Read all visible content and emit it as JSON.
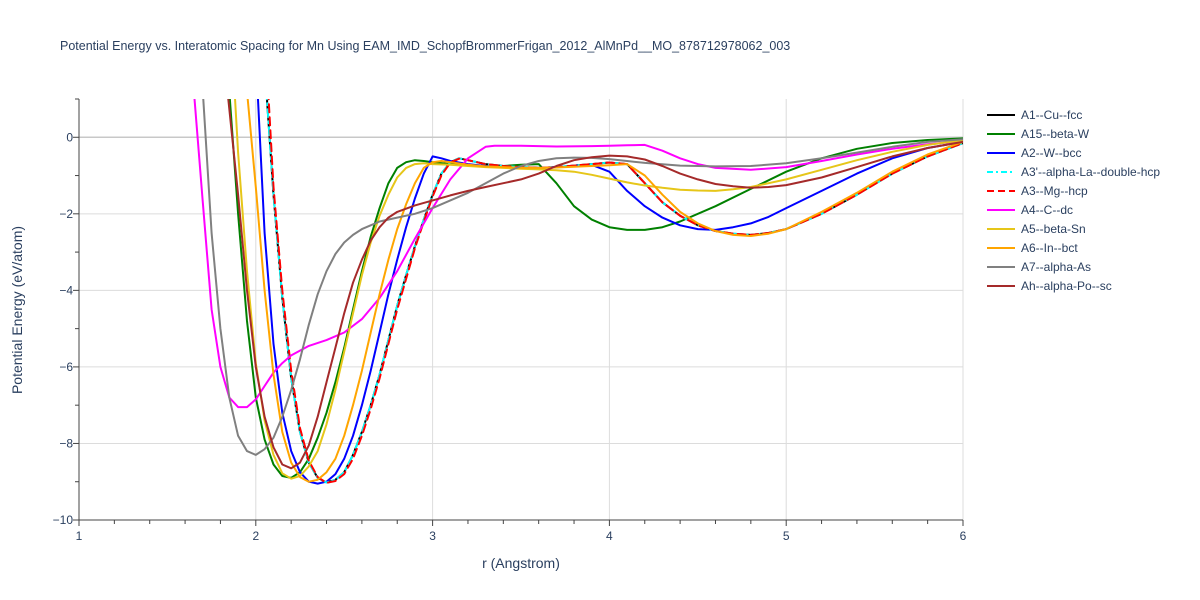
{
  "chart_data": {
    "type": "line",
    "title": "Potential Energy vs. Interatomic Spacing for Mn Using EAM_IMD_SchopfBrommerFrigan_2012_AlMnPd__MO_878712978062_003",
    "xlabel": "r (Angstrom)",
    "ylabel": "Potential Energy (eV/atom)",
    "xlim": [
      1,
      6
    ],
    "ylim": [
      -10,
      1
    ],
    "xticks": [
      1,
      2,
      3,
      4,
      5,
      6
    ],
    "yticks": [
      -10,
      -8,
      -6,
      -4,
      -2,
      0
    ],
    "grid": true,
    "legend_position": "right",
    "series": [
      {
        "name": "A1--Cu--fcc",
        "color": "#000000",
        "dash": "solid",
        "x": [
          2.06,
          2.1,
          2.15,
          2.2,
          2.25,
          2.3,
          2.35,
          2.4,
          2.45,
          2.5,
          2.55,
          2.6,
          2.65,
          2.7,
          2.75,
          2.8,
          2.85,
          2.9,
          2.95,
          3.0,
          3.05,
          3.1,
          3.15,
          3.2,
          3.3,
          3.4,
          3.5,
          3.6,
          3.7,
          3.8,
          3.9,
          4.0,
          4.1,
          4.2,
          4.3,
          4.4,
          4.5,
          4.6,
          4.7,
          4.8,
          4.9,
          5.0,
          5.2,
          5.4,
          5.6,
          5.8,
          6.0
        ],
        "y": [
          1.2,
          -1.5,
          -4.2,
          -6.3,
          -7.7,
          -8.5,
          -8.9,
          -9.02,
          -8.95,
          -8.75,
          -8.3,
          -7.7,
          -7.0,
          -6.2,
          -5.3,
          -4.4,
          -3.6,
          -2.85,
          -2.15,
          -1.5,
          -0.95,
          -0.65,
          -0.55,
          -0.6,
          -0.7,
          -0.75,
          -0.78,
          -0.8,
          -0.78,
          -0.74,
          -0.7,
          -0.66,
          -0.7,
          -1.2,
          -1.7,
          -2.05,
          -2.3,
          -2.45,
          -2.52,
          -2.55,
          -2.5,
          -2.4,
          -2.0,
          -1.5,
          -0.95,
          -0.5,
          -0.15
        ]
      },
      {
        "name": "A15--beta-W",
        "color": "#008000",
        "dash": "solid",
        "x": [
          1.85,
          1.9,
          1.95,
          2.0,
          2.05,
          2.1,
          2.15,
          2.2,
          2.25,
          2.3,
          2.35,
          2.4,
          2.45,
          2.5,
          2.55,
          2.6,
          2.65,
          2.7,
          2.75,
          2.8,
          2.85,
          2.9,
          2.95,
          3.0,
          3.1,
          3.2,
          3.3,
          3.4,
          3.5,
          3.6,
          3.7,
          3.8,
          3.9,
          4.0,
          4.1,
          4.2,
          4.3,
          4.4,
          4.6,
          4.8,
          5.0,
          5.2,
          5.4,
          5.6,
          5.8,
          6.0
        ],
        "y": [
          1.2,
          -2.0,
          -4.8,
          -6.8,
          -7.9,
          -8.55,
          -8.85,
          -8.9,
          -8.75,
          -8.4,
          -7.85,
          -7.2,
          -6.4,
          -5.5,
          -4.5,
          -3.5,
          -2.6,
          -1.85,
          -1.2,
          -0.8,
          -0.65,
          -0.6,
          -0.62,
          -0.65,
          -0.7,
          -0.73,
          -0.75,
          -0.75,
          -0.72,
          -0.7,
          -1.2,
          -1.8,
          -2.15,
          -2.35,
          -2.42,
          -2.42,
          -2.35,
          -2.2,
          -1.8,
          -1.35,
          -0.9,
          -0.55,
          -0.3,
          -0.15,
          -0.07,
          -0.03
        ]
      },
      {
        "name": "A2--W--bcc",
        "color": "#0000ff",
        "dash": "solid",
        "x": [
          2.01,
          2.05,
          2.1,
          2.15,
          2.2,
          2.25,
          2.3,
          2.35,
          2.4,
          2.45,
          2.5,
          2.55,
          2.6,
          2.65,
          2.7,
          2.75,
          2.8,
          2.85,
          2.9,
          2.95,
          3.0,
          3.05,
          3.1,
          3.2,
          3.3,
          3.4,
          3.5,
          3.6,
          3.7,
          3.8,
          3.9,
          4.0,
          4.1,
          4.2,
          4.3,
          4.4,
          4.5,
          4.6,
          4.7,
          4.8,
          4.9,
          5.0,
          5.2,
          5.4,
          5.6,
          5.8,
          6.0
        ],
        "y": [
          1.2,
          -2.5,
          -5.4,
          -7.2,
          -8.2,
          -8.75,
          -9.0,
          -9.05,
          -9.0,
          -8.8,
          -8.4,
          -7.8,
          -7.0,
          -6.1,
          -5.1,
          -4.1,
          -3.2,
          -2.35,
          -1.6,
          -0.95,
          -0.5,
          -0.55,
          -0.62,
          -0.7,
          -0.75,
          -0.78,
          -0.8,
          -0.8,
          -0.78,
          -0.75,
          -0.72,
          -0.9,
          -1.4,
          -1.8,
          -2.1,
          -2.3,
          -2.4,
          -2.42,
          -2.35,
          -2.25,
          -2.08,
          -1.85,
          -1.4,
          -0.95,
          -0.55,
          -0.28,
          -0.12
        ]
      },
      {
        "name": "A3'--alpha-La--double-hcp",
        "color": "#00ffff",
        "dash": "dashdot",
        "x": [
          2.06,
          2.1,
          2.15,
          2.2,
          2.25,
          2.3,
          2.35,
          2.4,
          2.45,
          2.5,
          2.55,
          2.6,
          2.65,
          2.7,
          2.75,
          2.8,
          2.85,
          2.9,
          2.95,
          3.0,
          3.05,
          3.1,
          3.15,
          3.2,
          3.3,
          3.4,
          3.5,
          3.6,
          3.7,
          3.8,
          3.9,
          4.0,
          4.1,
          4.2,
          4.3,
          4.4,
          4.5,
          4.6,
          4.7,
          4.8,
          4.9,
          5.0,
          5.2,
          5.4,
          5.6,
          5.8,
          6.0
        ],
        "y": [
          1.2,
          -1.5,
          -4.2,
          -6.3,
          -7.7,
          -8.5,
          -8.9,
          -9.02,
          -8.95,
          -8.75,
          -8.3,
          -7.7,
          -7.0,
          -6.2,
          -5.3,
          -4.4,
          -3.6,
          -2.85,
          -2.15,
          -1.5,
          -0.95,
          -0.65,
          -0.55,
          -0.6,
          -0.7,
          -0.75,
          -0.78,
          -0.8,
          -0.78,
          -0.74,
          -0.7,
          -0.66,
          -0.7,
          -1.2,
          -1.7,
          -2.05,
          -2.3,
          -2.45,
          -2.52,
          -2.55,
          -2.5,
          -2.4,
          -2.0,
          -1.5,
          -0.95,
          -0.5,
          -0.15
        ]
      },
      {
        "name": "A3--Mg--hcp",
        "color": "#ff0000",
        "dash": "dash",
        "x": [
          2.07,
          2.1,
          2.15,
          2.2,
          2.25,
          2.3,
          2.35,
          2.4,
          2.45,
          2.5,
          2.55,
          2.6,
          2.65,
          2.7,
          2.75,
          2.8,
          2.85,
          2.9,
          2.95,
          3.0,
          3.05,
          3.1,
          3.15,
          3.2,
          3.3,
          3.4,
          3.5,
          3.6,
          3.7,
          3.8,
          3.9,
          4.0,
          4.1,
          4.2,
          4.3,
          4.4,
          4.5,
          4.6,
          4.7,
          4.8,
          4.9,
          5.0,
          5.2,
          5.4,
          5.6,
          5.8,
          6.0
        ],
        "y": [
          1.2,
          -1.3,
          -4.0,
          -6.1,
          -7.6,
          -8.45,
          -8.88,
          -9.03,
          -8.98,
          -8.8,
          -8.4,
          -7.8,
          -7.1,
          -6.3,
          -5.4,
          -4.5,
          -3.7,
          -2.9,
          -2.2,
          -1.55,
          -1.0,
          -0.66,
          -0.56,
          -0.6,
          -0.7,
          -0.75,
          -0.78,
          -0.8,
          -0.78,
          -0.74,
          -0.7,
          -0.66,
          -0.7,
          -1.2,
          -1.7,
          -2.05,
          -2.3,
          -2.45,
          -2.52,
          -2.55,
          -2.5,
          -2.4,
          -2.0,
          -1.5,
          -0.95,
          -0.5,
          -0.15
        ]
      },
      {
        "name": "A4--C--dc",
        "color": "#ff00ff",
        "dash": "solid",
        "x": [
          1.65,
          1.7,
          1.75,
          1.8,
          1.85,
          1.9,
          1.95,
          2.0,
          2.05,
          2.1,
          2.15,
          2.2,
          2.3,
          2.4,
          2.5,
          2.6,
          2.7,
          2.8,
          2.9,
          3.0,
          3.1,
          3.2,
          3.3,
          3.35,
          3.5,
          3.7,
          3.9,
          4.0,
          4.1,
          4.2,
          4.3,
          4.4,
          4.5,
          4.6,
          4.8,
          5.0,
          5.2,
          5.4,
          5.6,
          5.8,
          6.0
        ],
        "y": [
          1.2,
          -1.7,
          -4.5,
          -6.0,
          -6.8,
          -7.05,
          -7.05,
          -6.85,
          -6.5,
          -6.15,
          -5.9,
          -5.7,
          -5.45,
          -5.3,
          -5.1,
          -4.75,
          -4.2,
          -3.5,
          -2.65,
          -1.85,
          -1.1,
          -0.55,
          -0.25,
          -0.22,
          -0.22,
          -0.24,
          -0.23,
          -0.22,
          -0.21,
          -0.2,
          -0.35,
          -0.55,
          -0.7,
          -0.8,
          -0.85,
          -0.78,
          -0.62,
          -0.45,
          -0.3,
          -0.18,
          -0.1
        ]
      },
      {
        "name": "A5--beta-Sn",
        "color": "#e6c619",
        "dash": "solid",
        "x": [
          1.88,
          1.9,
          1.95,
          2.0,
          2.05,
          2.1,
          2.15,
          2.2,
          2.25,
          2.3,
          2.35,
          2.4,
          2.45,
          2.5,
          2.55,
          2.6,
          2.65,
          2.7,
          2.75,
          2.8,
          2.85,
          2.9,
          2.95,
          3.0,
          3.1,
          3.2,
          3.3,
          3.4,
          3.5,
          3.6,
          3.7,
          3.8,
          3.9,
          4.0,
          4.1,
          4.2,
          4.3,
          4.4,
          4.5,
          4.6,
          4.7,
          4.8,
          5.0,
          5.2,
          5.4,
          5.6,
          5.8,
          6.0
        ],
        "y": [
          1.2,
          -0.4,
          -3.5,
          -5.9,
          -7.4,
          -8.3,
          -8.78,
          -8.92,
          -8.85,
          -8.6,
          -8.2,
          -7.5,
          -6.6,
          -5.6,
          -4.6,
          -3.6,
          -2.75,
          -2.05,
          -1.5,
          -1.05,
          -0.8,
          -0.7,
          -0.68,
          -0.7,
          -0.72,
          -0.75,
          -0.78,
          -0.8,
          -0.82,
          -0.84,
          -0.86,
          -0.9,
          -0.98,
          -1.08,
          -1.18,
          -1.26,
          -1.32,
          -1.37,
          -1.39,
          -1.4,
          -1.36,
          -1.3,
          -1.1,
          -0.85,
          -0.6,
          -0.38,
          -0.2,
          -0.08
        ]
      },
      {
        "name": "A6--In--bct",
        "color": "#ffa500",
        "dash": "solid",
        "x": [
          1.95,
          2.0,
          2.05,
          2.1,
          2.15,
          2.2,
          2.25,
          2.3,
          2.35,
          2.4,
          2.45,
          2.5,
          2.55,
          2.6,
          2.65,
          2.7,
          2.75,
          2.8,
          2.85,
          2.9,
          2.95,
          3.0,
          3.05,
          3.1,
          3.2,
          3.3,
          3.4,
          3.5,
          3.6,
          3.7,
          3.8,
          3.9,
          4.0,
          4.1,
          4.2,
          4.3,
          4.4,
          4.5,
          4.6,
          4.7,
          4.8,
          4.9,
          5.0,
          5.2,
          5.4,
          5.6,
          5.8,
          6.0
        ],
        "y": [
          1.2,
          -1.3,
          -4.0,
          -6.2,
          -7.7,
          -8.5,
          -8.88,
          -9.0,
          -8.95,
          -8.75,
          -8.4,
          -7.8,
          -7.0,
          -6.1,
          -5.1,
          -4.1,
          -3.2,
          -2.4,
          -1.75,
          -1.2,
          -0.8,
          -0.65,
          -0.62,
          -0.65,
          -0.72,
          -0.76,
          -0.78,
          -0.8,
          -0.8,
          -0.79,
          -0.77,
          -0.75,
          -0.73,
          -0.7,
          -1.0,
          -1.5,
          -1.95,
          -2.25,
          -2.45,
          -2.55,
          -2.58,
          -2.52,
          -2.4,
          -1.95,
          -1.45,
          -0.9,
          -0.45,
          -0.12
        ]
      },
      {
        "name": "A7--alpha-As",
        "color": "#808080",
        "dash": "solid",
        "x": [
          1.7,
          1.75,
          1.8,
          1.85,
          1.9,
          1.95,
          2.0,
          2.05,
          2.1,
          2.15,
          2.2,
          2.25,
          2.3,
          2.35,
          2.4,
          2.45,
          2.5,
          2.55,
          2.6,
          2.65,
          2.7,
          2.8,
          2.9,
          3.0,
          3.1,
          3.2,
          3.3,
          3.4,
          3.5,
          3.6,
          3.7,
          3.8,
          3.9,
          4.0,
          4.1,
          4.2,
          4.4,
          4.6,
          4.8,
          5.0,
          5.2,
          5.4,
          5.6,
          5.8,
          6.0
        ],
        "y": [
          1.2,
          -2.5,
          -5.0,
          -6.8,
          -7.8,
          -8.2,
          -8.3,
          -8.15,
          -7.85,
          -7.3,
          -6.6,
          -5.8,
          -4.9,
          -4.1,
          -3.5,
          -3.05,
          -2.75,
          -2.55,
          -2.4,
          -2.3,
          -2.2,
          -2.1,
          -2.0,
          -1.85,
          -1.65,
          -1.45,
          -1.2,
          -0.95,
          -0.75,
          -0.62,
          -0.55,
          -0.53,
          -0.54,
          -0.57,
          -0.62,
          -0.67,
          -0.74,
          -0.76,
          -0.75,
          -0.68,
          -0.55,
          -0.4,
          -0.25,
          -0.12,
          -0.05
        ]
      },
      {
        "name": "Ah--alpha-Po--sc",
        "color": "#a52a2a",
        "dash": "solid",
        "x": [
          1.84,
          1.9,
          1.95,
          2.0,
          2.05,
          2.1,
          2.15,
          2.2,
          2.25,
          2.3,
          2.35,
          2.4,
          2.45,
          2.5,
          2.55,
          2.6,
          2.65,
          2.7,
          2.75,
          2.8,
          2.9,
          3.0,
          3.1,
          3.2,
          3.3,
          3.4,
          3.5,
          3.6,
          3.7,
          3.8,
          3.9,
          4.0,
          4.1,
          4.2,
          4.3,
          4.4,
          4.5,
          4.6,
          4.7,
          4.8,
          4.9,
          5.0,
          5.2,
          5.4,
          5.6,
          5.8,
          6.0
        ],
        "y": [
          1.2,
          -1.5,
          -4.0,
          -6.0,
          -7.3,
          -8.1,
          -8.55,
          -8.65,
          -8.5,
          -8.05,
          -7.3,
          -6.4,
          -5.5,
          -4.6,
          -3.8,
          -3.2,
          -2.7,
          -2.35,
          -2.1,
          -1.95,
          -1.78,
          -1.65,
          -1.52,
          -1.4,
          -1.3,
          -1.2,
          -1.1,
          -0.95,
          -0.75,
          -0.6,
          -0.52,
          -0.48,
          -0.5,
          -0.58,
          -0.75,
          -0.95,
          -1.1,
          -1.22,
          -1.28,
          -1.32,
          -1.3,
          -1.25,
          -1.05,
          -0.78,
          -0.5,
          -0.28,
          -0.12
        ]
      }
    ]
  }
}
